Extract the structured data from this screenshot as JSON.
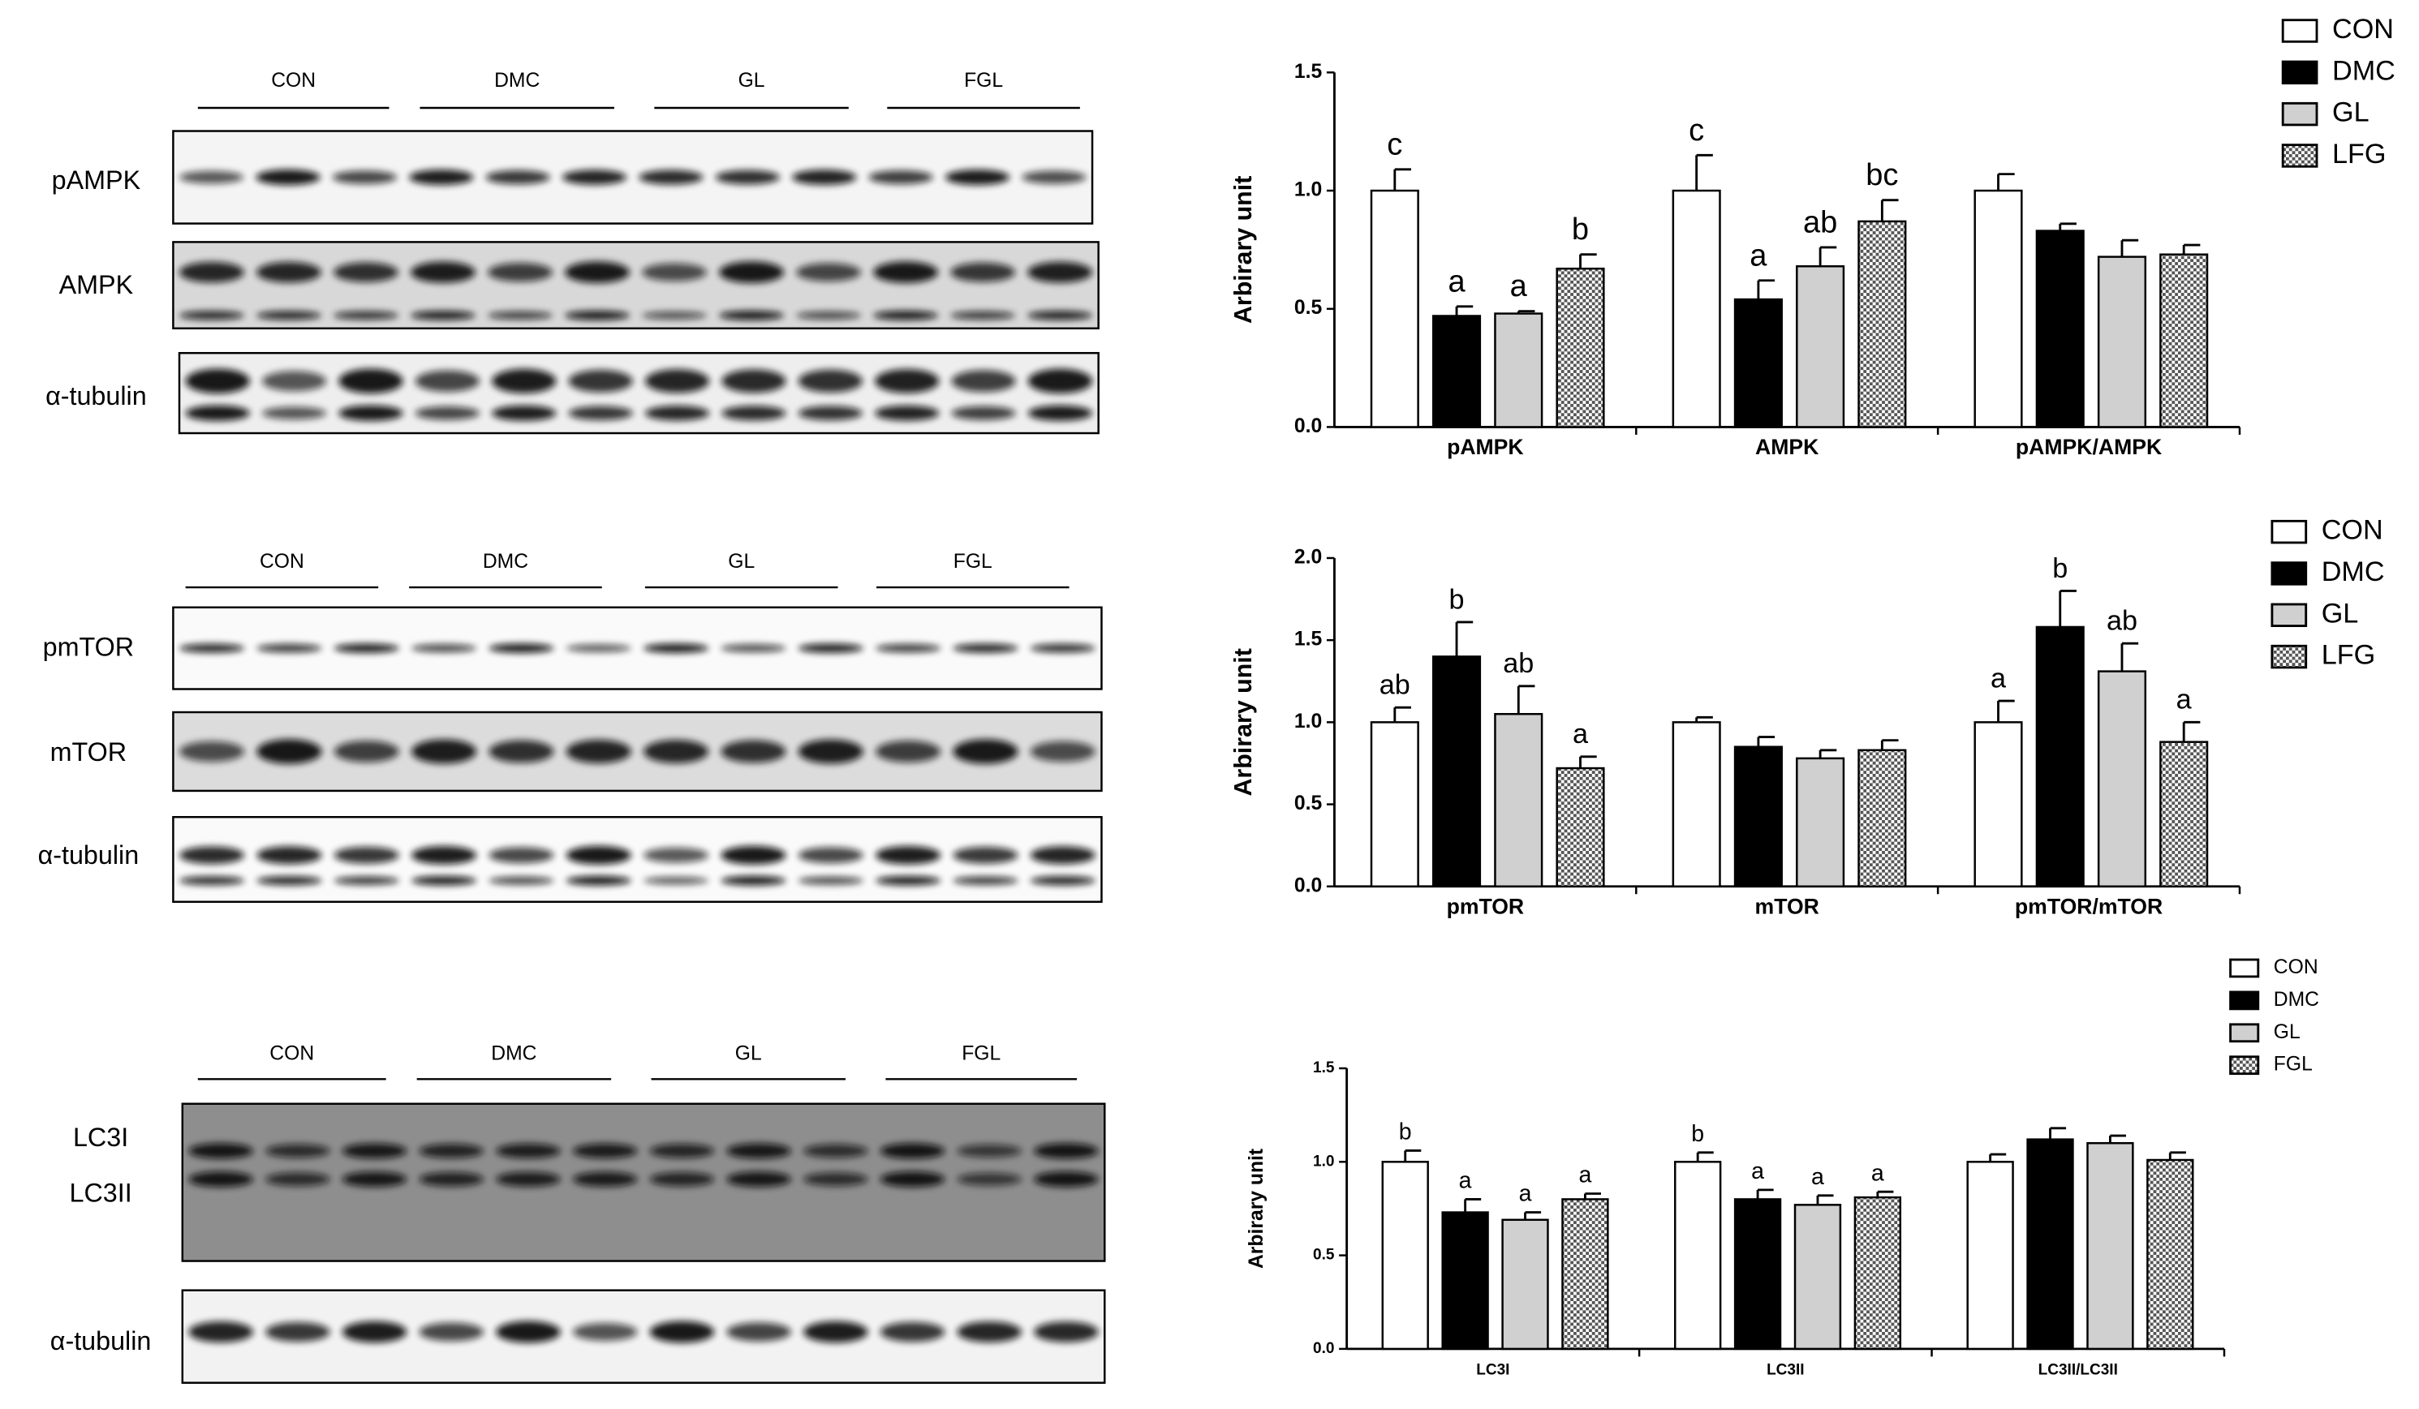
{
  "blots": [
    {
      "groups": [
        "CON",
        "DMC",
        "GL",
        "FGL"
      ],
      "rows": [
        {
          "labels": [
            "pAMPK"
          ]
        },
        {
          "labels": [
            "AMPK"
          ]
        },
        {
          "labels": [
            "α-tubulin"
          ]
        }
      ]
    },
    {
      "groups": [
        "CON",
        "DMC",
        "GL",
        "FGL"
      ],
      "rows": [
        {
          "labels": [
            "pmTOR"
          ]
        },
        {
          "labels": [
            "mTOR"
          ]
        },
        {
          "labels": [
            "α-tubulin"
          ]
        }
      ]
    },
    {
      "groups": [
        "CON",
        "DMC",
        "GL",
        "FGL"
      ],
      "rows": [
        {
          "labels": [
            "LC3I",
            "LC3II"
          ]
        },
        {
          "labels": [
            "α-tubulin"
          ]
        }
      ]
    }
  ],
  "chart_data": [
    {
      "type": "bar",
      "ylabel": "Arbirary unit",
      "categories": [
        "pAMPK",
        "AMPK",
        "pAMPK/AMPK"
      ],
      "ylim": [
        0,
        1.5
      ],
      "yticks": [
        {
          "value": 0,
          "label": "0.0"
        },
        0.5,
        {
          "value": 1,
          "label": "1.0"
        },
        1.5
      ],
      "legend": "top-right",
      "series": [
        {
          "name": "CON",
          "color": "#ffffff",
          "values": [
            1.0,
            1.0,
            1.0
          ],
          "errors": [
            0.09,
            0.15,
            0.07
          ],
          "letters": [
            "c",
            "c",
            null
          ]
        },
        {
          "name": "DMC",
          "color": "#000000",
          "values": [
            0.47,
            0.54,
            0.83
          ],
          "errors": [
            0.04,
            0.08,
            0.03
          ],
          "letters": [
            "a",
            "a",
            null
          ]
        },
        {
          "name": "GL",
          "color": "#d0d0d0",
          "values": [
            0.48,
            0.68,
            0.72
          ],
          "errors": [
            0.01,
            0.08,
            0.07
          ],
          "letters": [
            "a",
            "ab",
            null
          ]
        },
        {
          "name": "LFG",
          "color": "#8c8c8c",
          "pattern": "checker",
          "values": [
            0.67,
            0.87,
            0.73
          ],
          "errors": [
            0.06,
            0.09,
            0.04
          ],
          "letters": [
            "b",
            "bc",
            null
          ]
        }
      ]
    },
    {
      "type": "bar",
      "ylabel": "Arbirary unit",
      "categories": [
        "pmTOR",
        "mTOR",
        "pmTOR/mTOR"
      ],
      "ylim": [
        0,
        2.0
      ],
      "yticks": [
        {
          "value": 0,
          "label": "0.0"
        },
        0.5,
        {
          "value": 1,
          "label": "1.0"
        },
        1.5,
        {
          "value": 2,
          "label": "2.0"
        }
      ],
      "legend": "top-right",
      "series": [
        {
          "name": "CON",
          "color": "#ffffff",
          "values": [
            1.0,
            1.0,
            1.0
          ],
          "errors": [
            0.09,
            0.03,
            0.13
          ],
          "letters": [
            "ab",
            null,
            "a"
          ]
        },
        {
          "name": "DMC",
          "color": "#000000",
          "values": [
            1.4,
            0.85,
            1.58
          ],
          "errors": [
            0.21,
            0.06,
            0.22
          ],
          "letters": [
            "b",
            null,
            "b"
          ]
        },
        {
          "name": "GL",
          "color": "#d0d0d0",
          "values": [
            1.05,
            0.78,
            1.31
          ],
          "errors": [
            0.17,
            0.05,
            0.17
          ],
          "letters": [
            "ab",
            null,
            "ab"
          ]
        },
        {
          "name": "LFG",
          "color": "#8c8c8c",
          "pattern": "checker",
          "values": [
            0.72,
            0.83,
            0.88
          ],
          "errors": [
            0.07,
            0.06,
            0.12
          ],
          "letters": [
            "a",
            null,
            "a"
          ]
        }
      ]
    },
    {
      "type": "bar",
      "ylabel": "Arbirary unit",
      "categories": [
        "LC3I",
        "LC3II",
        "LC3II/LC3II"
      ],
      "ylim": [
        0,
        1.5
      ],
      "yticks": [
        {
          "value": 0,
          "label": "0.0"
        },
        0.5,
        {
          "value": 1,
          "label": "1.0"
        },
        1.5
      ],
      "legend": "top-right",
      "series": [
        {
          "name": "CON",
          "color": "#ffffff",
          "values": [
            1.0,
            1.0,
            1.0
          ],
          "errors": [
            0.06,
            0.05,
            0.04
          ],
          "letters": [
            "b",
            "b",
            null
          ]
        },
        {
          "name": "DMC",
          "color": "#000000",
          "values": [
            0.73,
            0.8,
            1.12
          ],
          "errors": [
            0.07,
            0.05,
            0.06
          ],
          "letters": [
            "a",
            "a",
            null
          ]
        },
        {
          "name": "GL",
          "color": "#d0d0d0",
          "values": [
            0.69,
            0.77,
            1.1
          ],
          "errors": [
            0.04,
            0.05,
            0.04
          ],
          "letters": [
            "a",
            "a",
            null
          ]
        },
        {
          "name": "FGL",
          "color": "#8c8c8c",
          "pattern": "checker",
          "values": [
            0.8,
            0.81,
            1.01
          ],
          "errors": [
            0.03,
            0.03,
            0.04
          ],
          "letters": [
            "a",
            "a",
            null
          ]
        }
      ]
    }
  ]
}
